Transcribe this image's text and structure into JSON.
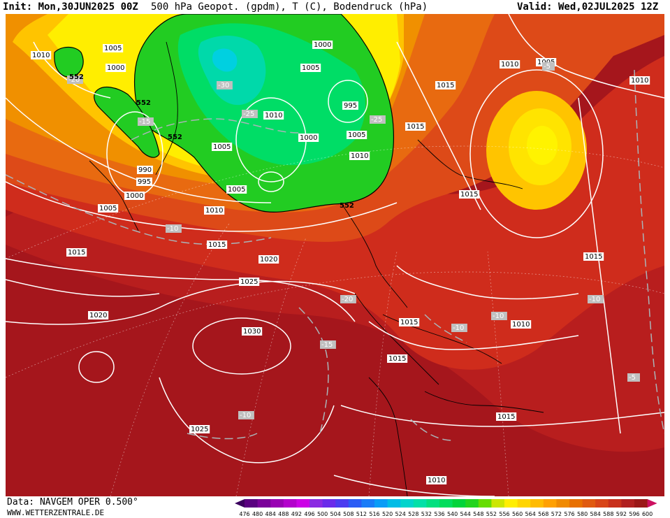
{
  "header": {
    "init": "Init: Mon,30JUN2025 00Z",
    "title": "500 hPa Geopot. (gpdm), T (C), Bodendruck (hPa)",
    "valid": "Valid: Wed,02JUL2025 12Z"
  },
  "footer": {
    "source": "Data: NAVGEM OPER 0.500°",
    "website": "WWW.WETTERZENTRALE.DE"
  },
  "legend": {
    "values": [
      "476",
      "480",
      "484",
      "488",
      "492",
      "496",
      "500",
      "504",
      "508",
      "512",
      "516",
      "520",
      "524",
      "528",
      "532",
      "536",
      "540",
      "544",
      "548",
      "552",
      "556",
      "560",
      "564",
      "568",
      "572",
      "576",
      "580",
      "584",
      "588",
      "592",
      "596",
      "600"
    ],
    "colors": [
      "#3b005e",
      "#5a0080",
      "#7a0099",
      "#9900b3",
      "#b300cc",
      "#cc00e6",
      "#8a2be2",
      "#6a2bea",
      "#4b3cf0",
      "#2b5cf5",
      "#1a7cf7",
      "#0a9cf7",
      "#00bce6",
      "#00d4cc",
      "#00e0a8",
      "#00e080",
      "#00dd5c",
      "#00d43a",
      "#22d41e",
      "#66dd00",
      "#cce600",
      "#ffee00",
      "#ffd500",
      "#ffbb00",
      "#ffa000",
      "#f08a00",
      "#e87000",
      "#e05a10",
      "#d84518",
      "#c8301c",
      "#b02020",
      "#9a1818",
      "#cc1060"
    ]
  },
  "pressure_labels": [
    {
      "text": "1010"
    },
    {
      "text": "1005"
    },
    {
      "text": "1000"
    },
    {
      "text": "1005"
    },
    {
      "text": "1000"
    },
    {
      "text": "1005"
    },
    {
      "text": "1010"
    },
    {
      "text": "995"
    },
    {
      "text": "1005"
    },
    {
      "text": "1010"
    },
    {
      "text": "1000"
    },
    {
      "text": "1005"
    },
    {
      "text": "1015"
    },
    {
      "text": "1010"
    },
    {
      "text": "1005"
    },
    {
      "text": "1015"
    },
    {
      "text": "1010"
    },
    {
      "text": "990"
    },
    {
      "text": "995"
    },
    {
      "text": "1000"
    },
    {
      "text": "1005"
    },
    {
      "text": "1010"
    },
    {
      "text": "1015"
    },
    {
      "text": "1015"
    },
    {
      "text": "1020"
    },
    {
      "text": "1025"
    },
    {
      "text": "1020"
    },
    {
      "text": "1030"
    },
    {
      "text": "1015"
    },
    {
      "text": "1015"
    },
    {
      "text": "1015"
    },
    {
      "text": "1010"
    },
    {
      "text": "1015"
    },
    {
      "text": "1015"
    },
    {
      "text": "1025"
    },
    {
      "text": "1010"
    }
  ],
  "temperature_labels": [
    {
      "text": "-20"
    },
    {
      "text": "-15"
    },
    {
      "text": "-30"
    },
    {
      "text": "-25"
    },
    {
      "text": "-25"
    },
    {
      "text": "-10"
    },
    {
      "text": "-20"
    },
    {
      "text": "-15"
    },
    {
      "text": "-10"
    },
    {
      "text": "-10"
    },
    {
      "text": "-10"
    },
    {
      "text": "-10"
    },
    {
      "text": "-5"
    },
    {
      "text": "-5"
    }
  ],
  "geopotential_labels": [
    {
      "text": "552"
    },
    {
      "text": "552"
    },
    {
      "text": "552"
    },
    {
      "text": "552"
    }
  ]
}
